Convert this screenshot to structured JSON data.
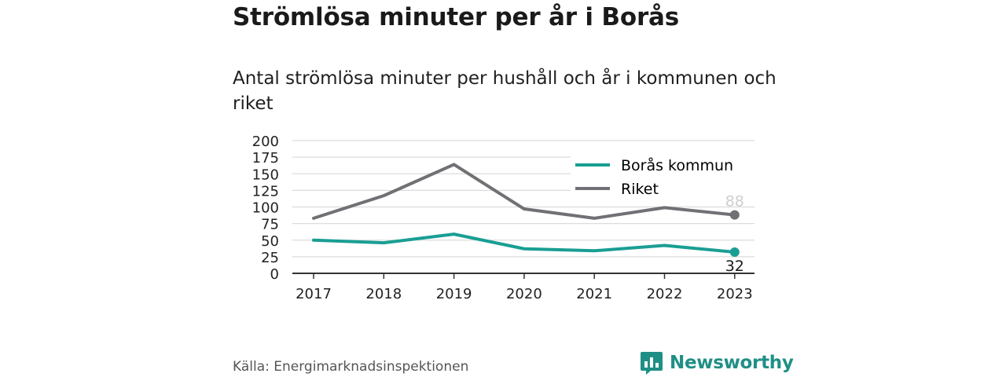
{
  "header": {
    "title": "Strömlösa minuter per år i Borås",
    "subtitle": "Antal strömlösa minuter per hushåll och år i kommunen och riket"
  },
  "footer": {
    "source": "Källa: Energimarknadsinspektionen",
    "brand": "Newsworthy",
    "brand_icon": "newsworthy-logo-icon"
  },
  "colors": {
    "boras": "#1a9e93",
    "riket": "#717075",
    "grid": "#dcdcdc",
    "brand": "#1f8f86"
  },
  "chart_data": {
    "type": "line",
    "categories": [
      "2017",
      "2018",
      "2019",
      "2020",
      "2021",
      "2022",
      "2023"
    ],
    "series": [
      {
        "name": "Borås kommun",
        "values": [
          50,
          46,
          59,
          37,
          34,
          42,
          32
        ]
      },
      {
        "name": "Riket",
        "values": [
          83,
          117,
          164,
          97,
          83,
          99,
          88
        ]
      }
    ],
    "end_labels": [
      "32",
      "88"
    ],
    "yticks": [
      "0",
      "25",
      "50",
      "75",
      "100",
      "125",
      "150",
      "175",
      "200"
    ],
    "ylim": [
      0,
      200
    ],
    "grid": true,
    "legend_position": "top-right"
  }
}
